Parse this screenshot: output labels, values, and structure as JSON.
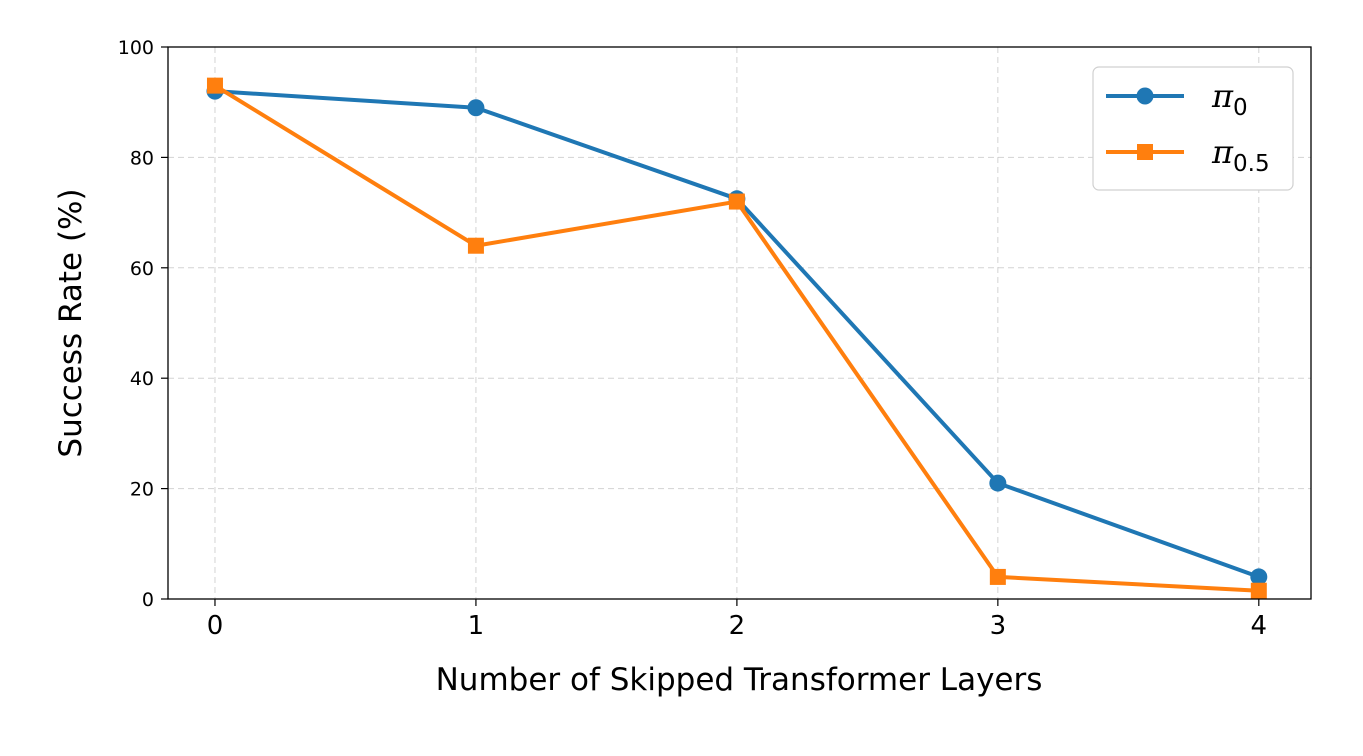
{
  "chart_data": {
    "type": "line",
    "xlabel": "Number of Skipped Transformer Layers",
    "ylabel": "Success Rate (%)",
    "x": [
      0,
      1,
      2,
      3,
      4
    ],
    "x_ticks": [
      "0",
      "1",
      "2",
      "3",
      "4"
    ],
    "y_ticks": [
      "0",
      "20",
      "40",
      "60",
      "80",
      "100"
    ],
    "xlim": [
      -0.18,
      4.2
    ],
    "ylim": [
      0,
      100
    ],
    "grid": true,
    "legend_position": "top-right",
    "series": [
      {
        "name_base": "π",
        "name_sub": "0",
        "values": [
          92,
          89,
          72.5,
          21,
          4
        ],
        "color": "#1f77b4",
        "marker": "circle"
      },
      {
        "name_base": "π",
        "name_sub": "0.5",
        "values": [
          93,
          64,
          72,
          4,
          1.5
        ],
        "color": "#ff7f0e",
        "marker": "square"
      }
    ]
  }
}
